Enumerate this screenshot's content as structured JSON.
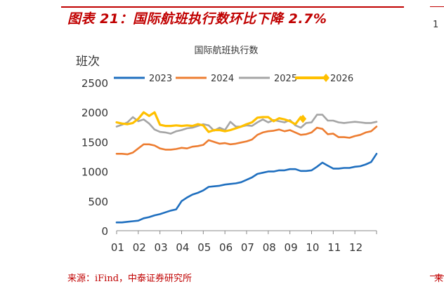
{
  "figure": {
    "title": "图表 21：国际航班执行数环比下降 2.7%",
    "source": "来源：iFind，中泰证券研究所",
    "stub_right_top": "1",
    "stub_right_bottom": "来"
  },
  "chart_data": {
    "type": "line",
    "title": "国际航班执行数",
    "ylabel": "班次",
    "xlabel": "",
    "ylim": [
      0,
      2500
    ],
    "yticks": [
      0,
      500,
      1000,
      1500,
      2000,
      2500
    ],
    "xlim": [
      1,
      13
    ],
    "xticks": [
      1,
      2,
      3,
      4,
      5,
      6,
      7,
      8,
      9,
      10,
      11,
      12
    ],
    "xtick_labels": [
      "01",
      "02",
      "03",
      "04",
      "05",
      "06",
      "07",
      "08",
      "09",
      "10",
      "11",
      "12"
    ],
    "grid": false,
    "legend": "top",
    "series": [
      {
        "name": "2023",
        "color": "#1f6fbf",
        "x": [
          1.0,
          1.25,
          1.5,
          1.75,
          2.0,
          2.25,
          2.5,
          2.75,
          3.0,
          3.25,
          3.5,
          3.75,
          4.0,
          4.25,
          4.5,
          4.75,
          5.0,
          5.25,
          5.5,
          5.75,
          6.0,
          6.25,
          6.5,
          6.75,
          7.0,
          7.25,
          7.5,
          7.75,
          8.0,
          8.25,
          8.5,
          8.75,
          9.0,
          9.25,
          9.5,
          9.75,
          10.0,
          10.25,
          10.5,
          10.75,
          11.0,
          11.25,
          11.5,
          11.75,
          12.0,
          12.25,
          12.5,
          12.75,
          13.0
        ],
        "y": [
          140,
          140,
          150,
          160,
          170,
          210,
          230,
          260,
          280,
          310,
          340,
          360,
          500,
          560,
          610,
          640,
          680,
          740,
          750,
          760,
          780,
          790,
          800,
          820,
          860,
          900,
          960,
          980,
          1000,
          1000,
          1020,
          1020,
          1040,
          1040,
          1010,
          1010,
          1020,
          1080,
          1150,
          1100,
          1050,
          1050,
          1060,
          1060,
          1080,
          1090,
          1120,
          1160,
          1300
        ]
      },
      {
        "name": "2024",
        "color": "#ed7d31",
        "x": [
          1.0,
          1.25,
          1.5,
          1.75,
          2.0,
          2.25,
          2.5,
          2.75,
          3.0,
          3.25,
          3.5,
          3.75,
          4.0,
          4.25,
          4.5,
          4.75,
          5.0,
          5.25,
          5.5,
          5.75,
          6.0,
          6.25,
          6.5,
          6.75,
          7.0,
          7.25,
          7.5,
          7.75,
          8.0,
          8.25,
          8.5,
          8.75,
          9.0,
          9.25,
          9.5,
          9.75,
          10.0,
          10.25,
          10.5,
          10.75,
          11.0,
          11.25,
          11.5,
          11.75,
          12.0,
          12.25,
          12.5,
          12.75,
          13.0
        ],
        "y": [
          1300,
          1300,
          1290,
          1320,
          1390,
          1460,
          1460,
          1440,
          1390,
          1370,
          1370,
          1380,
          1400,
          1390,
          1420,
          1430,
          1450,
          1530,
          1500,
          1470,
          1480,
          1460,
          1470,
          1490,
          1510,
          1540,
          1620,
          1660,
          1680,
          1690,
          1710,
          1680,
          1700,
          1660,
          1620,
          1630,
          1660,
          1740,
          1720,
          1630,
          1640,
          1580,
          1580,
          1570,
          1600,
          1620,
          1660,
          1680,
          1760
        ]
      },
      {
        "name": "2025",
        "color": "#a5a5a5",
        "x": [
          1.0,
          1.25,
          1.5,
          1.75,
          2.0,
          2.25,
          2.5,
          2.75,
          3.0,
          3.25,
          3.5,
          3.75,
          4.0,
          4.25,
          4.5,
          4.75,
          5.0,
          5.25,
          5.5,
          5.75,
          6.0,
          6.25,
          6.5,
          6.75,
          7.0,
          7.25,
          7.5,
          7.75,
          8.0,
          8.25,
          8.5,
          8.75,
          9.0,
          9.25,
          9.5,
          9.75,
          10.0,
          10.25,
          10.5,
          10.75,
          11.0,
          11.25,
          11.5,
          11.75,
          12.0,
          12.25,
          12.5,
          12.75,
          13.0
        ],
        "y": [
          1760,
          1790,
          1830,
          1920,
          1850,
          1880,
          1810,
          1710,
          1670,
          1660,
          1640,
          1680,
          1700,
          1730,
          1740,
          1770,
          1800,
          1780,
          1690,
          1740,
          1700,
          1840,
          1760,
          1760,
          1780,
          1770,
          1830,
          1880,
          1830,
          1870,
          1850,
          1830,
          1870,
          1780,
          1740,
          1820,
          1830,
          1960,
          1960,
          1860,
          1860,
          1830,
          1820,
          1830,
          1840,
          1830,
          1820,
          1820,
          1840
        ]
      },
      {
        "name": "2026",
        "color": "#ffc000",
        "x": [
          1.0,
          1.25,
          1.5,
          1.75,
          2.0,
          2.25,
          2.5,
          2.75,
          3.0,
          3.25,
          3.5,
          3.75,
          4.0,
          4.25,
          4.5,
          4.75,
          5.0,
          5.25,
          5.5,
          5.75,
          6.0,
          6.25,
          6.5,
          6.75,
          7.0,
          7.25,
          7.5,
          7.75,
          8.0,
          8.25,
          8.5,
          8.75,
          9.0,
          9.25,
          9.5,
          9.6
        ],
        "y": [
          1830,
          1810,
          1800,
          1820,
          1890,
          2000,
          1940,
          2000,
          1790,
          1770,
          1770,
          1780,
          1770,
          1780,
          1770,
          1800,
          1780,
          1670,
          1700,
          1700,
          1680,
          1700,
          1730,
          1760,
          1800,
          1830,
          1910,
          1920,
          1920,
          1850,
          1900,
          1880,
          1850,
          1800,
          1920,
          1890
        ]
      }
    ]
  }
}
